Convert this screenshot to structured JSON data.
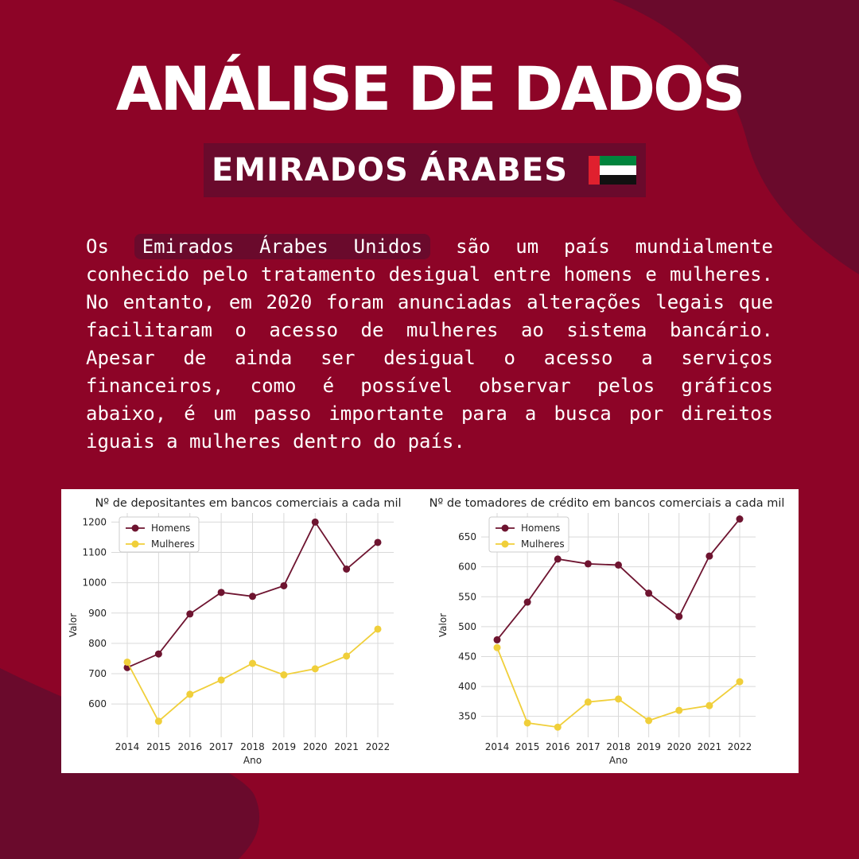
{
  "header": {
    "title": "ANÁLISE DE DADOS",
    "subtitle": "EMIRADOS ÁRABES"
  },
  "paragraph": {
    "p1": "Os",
    "highlight": "Emirados Árabes Unidos",
    "p2": " são um país mundialmente conhecido pelo tratamento desigual entre homens e mulheres. No entanto, em 2020 foram anunciadas alterações legais que facilitaram o acesso de mulheres ao sistema bancário. Apesar de ainda ser desigual o acesso a serviços financeiros, como é possível observar pelos gráficos abaixo, é um passo importante para a busca por direitos iguais a mulheres dentro do país."
  },
  "colors": {
    "background": "#8d0427",
    "dark_shape": "#6a0a2c",
    "homens": "#6e1430",
    "mulheres": "#f0cf3a"
  },
  "chart_data": [
    {
      "type": "line",
      "title": "Nº de depositantes em bancos comerciais a cada mil",
      "xlabel": "Ano",
      "ylabel": "Valor",
      "x": [
        2014,
        2015,
        2016,
        2017,
        2018,
        2019,
        2020,
        2021,
        2022
      ],
      "yticks": [
        600,
        700,
        800,
        900,
        1000,
        1100,
        1200
      ],
      "ylim": [
        490,
        1230
      ],
      "grid": true,
      "legend": "top-left",
      "series": [
        {
          "name": "Homens",
          "color": "#6e1430",
          "values": [
            720,
            765,
            897,
            968,
            955,
            990,
            1200,
            1045,
            1133
          ]
        },
        {
          "name": "Mulheres",
          "color": "#f0cf3a",
          "values": [
            738,
            543,
            632,
            679,
            734,
            696,
            716,
            758,
            847
          ]
        }
      ]
    },
    {
      "type": "line",
      "title": "Nº de tomadores de crédito em bancos comerciais a cada mil",
      "xlabel": "Ano",
      "ylabel": "Valor",
      "x": [
        2014,
        2015,
        2016,
        2017,
        2018,
        2019,
        2020,
        2021,
        2022
      ],
      "yticks": [
        350,
        400,
        450,
        500,
        550,
        600,
        650
      ],
      "ylim": [
        315,
        690
      ],
      "grid": true,
      "legend": "top-left",
      "series": [
        {
          "name": "Homens",
          "color": "#6e1430",
          "values": [
            478,
            541,
            613,
            605,
            603,
            556,
            517,
            618,
            680
          ]
        },
        {
          "name": "Mulheres",
          "color": "#f0cf3a",
          "values": [
            465,
            339,
            332,
            374,
            379,
            343,
            360,
            368,
            408
          ]
        }
      ]
    }
  ]
}
